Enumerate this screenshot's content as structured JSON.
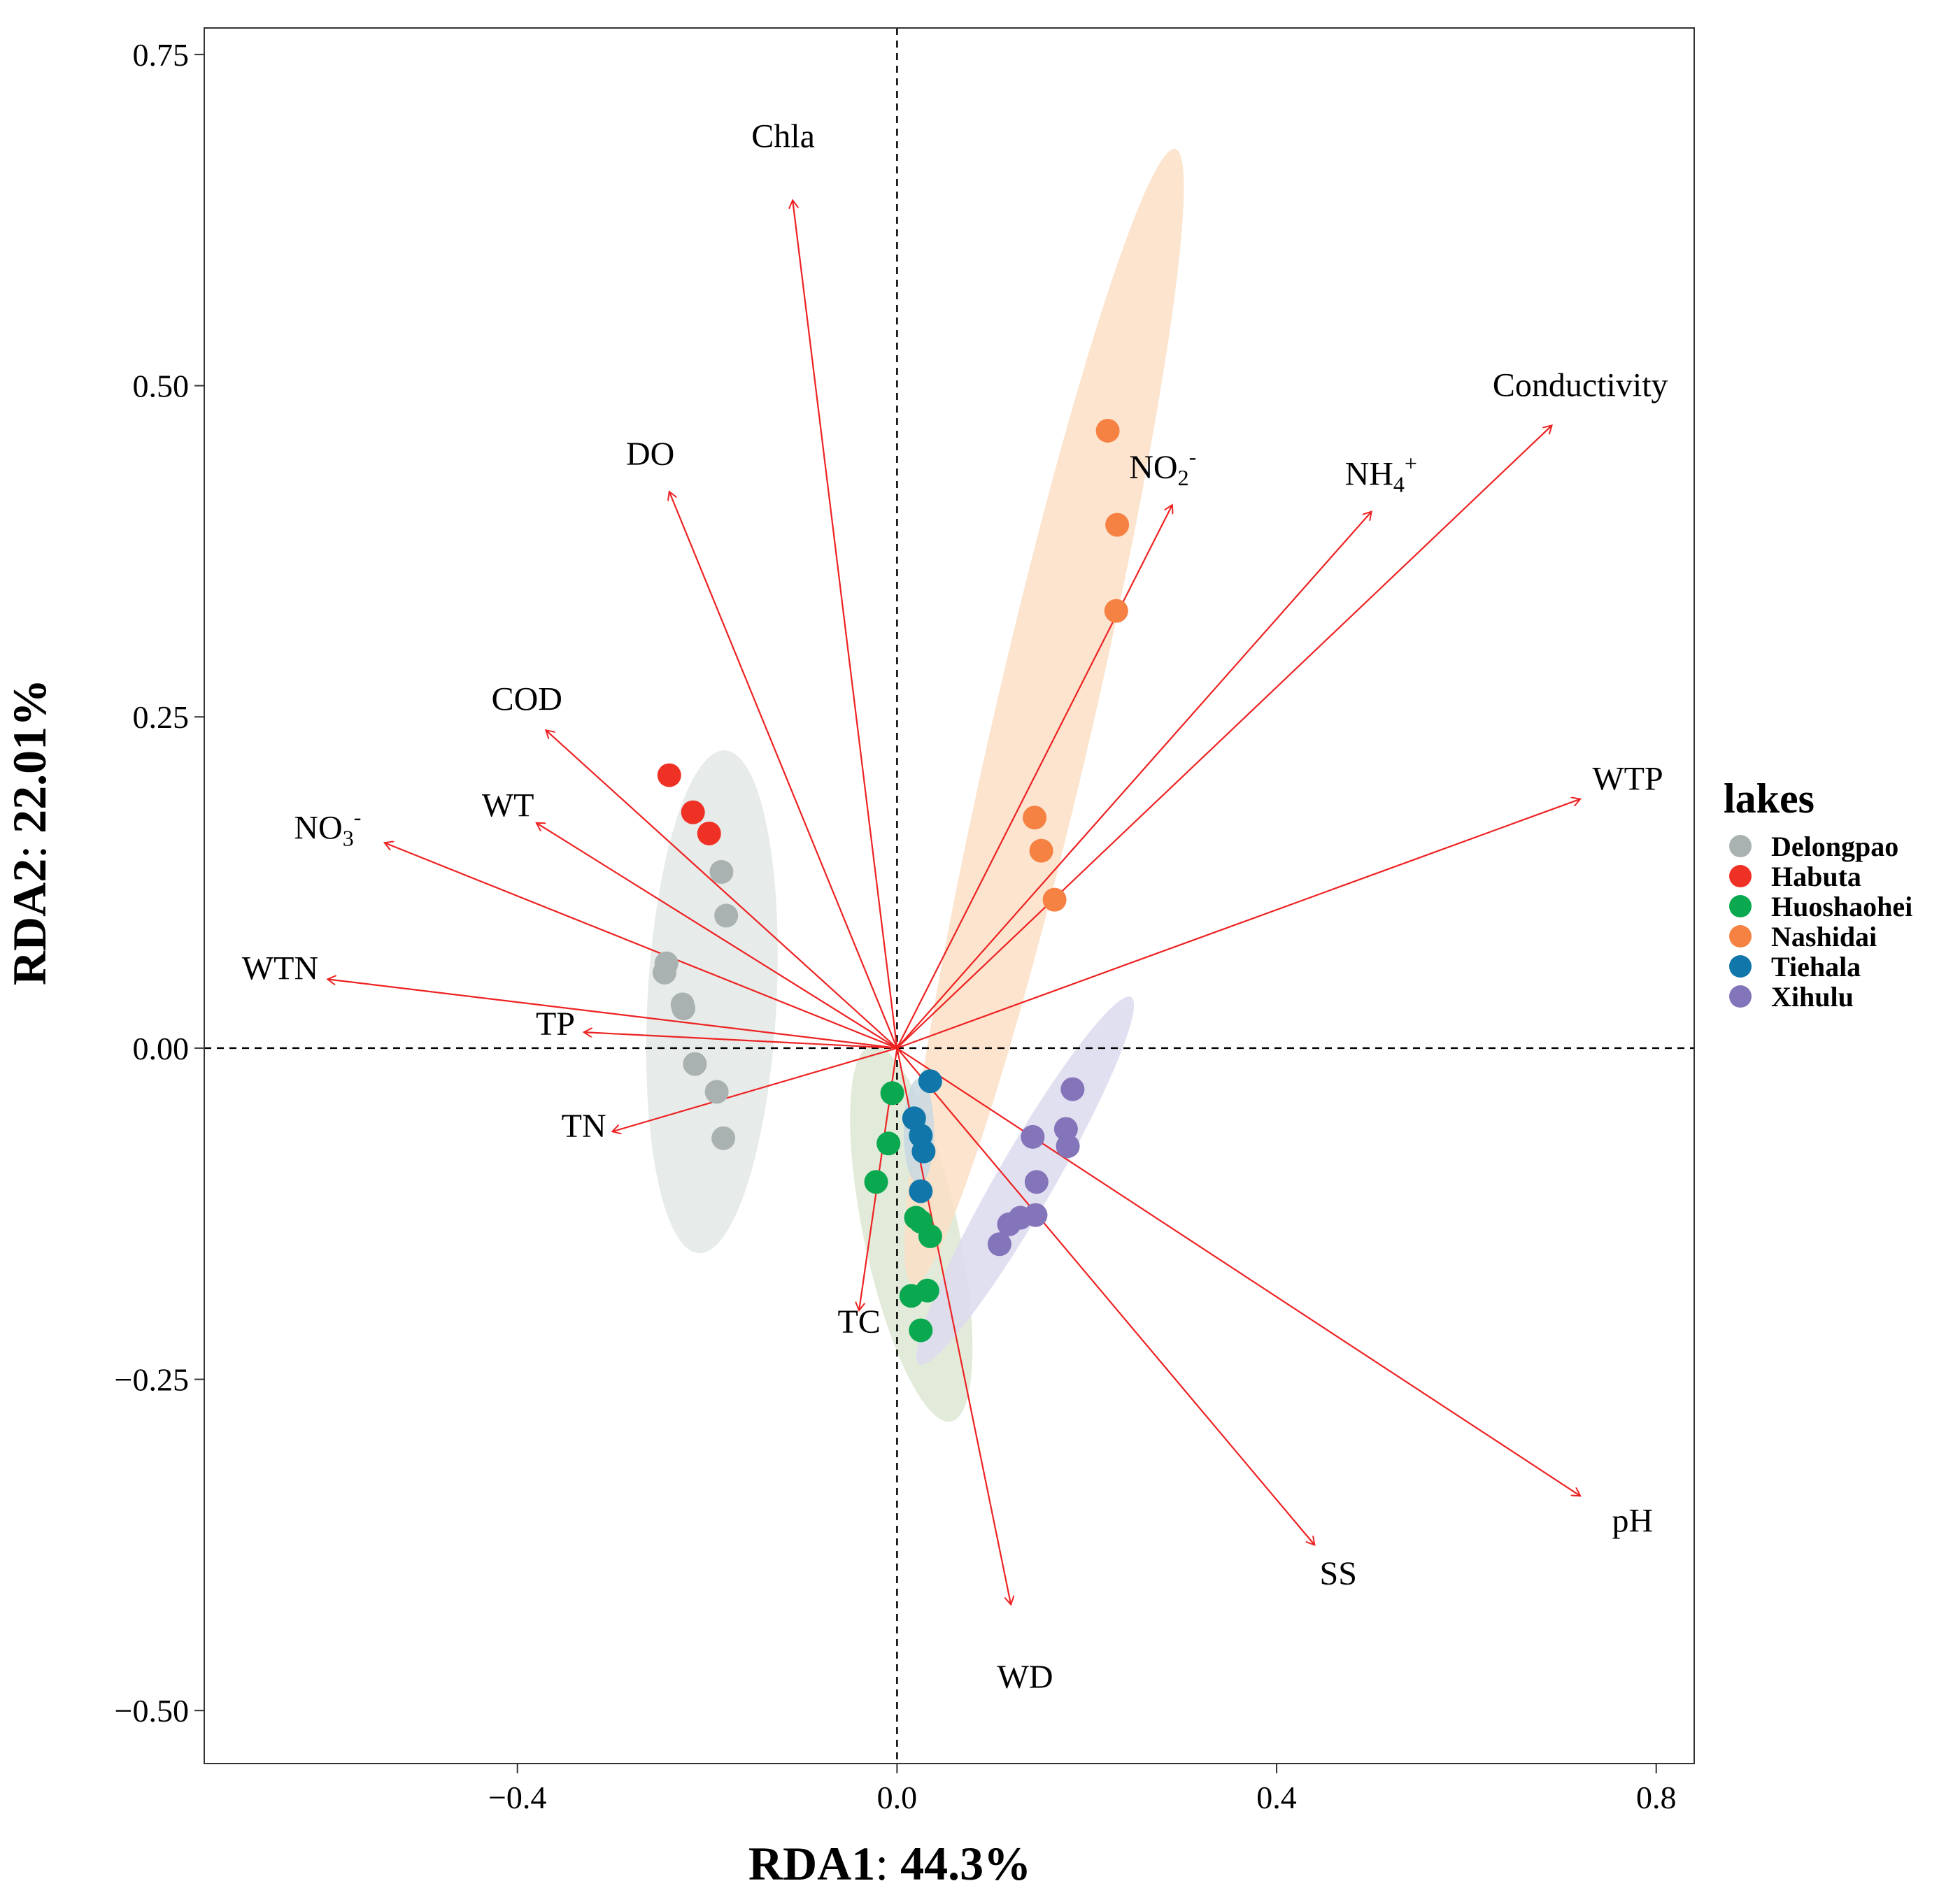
{
  "chart_data": {
    "type": "scatter",
    "subtype": "RDA biplot",
    "xlabel": {
      "name": "RDA1",
      "value": "44.3%"
    },
    "ylabel": {
      "name": "RDA2",
      "value": "22.01%"
    },
    "xlim": [
      -0.73,
      0.84
    ],
    "ylim": [
      -0.54,
      0.77
    ],
    "xticks": [
      {
        "value": -0.4,
        "label": "−0.4"
      },
      {
        "value": 0.0,
        "label": "0.0"
      },
      {
        "value": 0.4,
        "label": "0.4"
      },
      {
        "value": 0.8,
        "label": "0.8"
      }
    ],
    "yticks": [
      {
        "value": 0.75,
        "label": "0.75"
      },
      {
        "value": 0.5,
        "label": "0.50"
      },
      {
        "value": 0.25,
        "label": "0.25"
      },
      {
        "value": 0.0,
        "label": "0.00"
      },
      {
        "value": -0.25,
        "label": "−0.25"
      },
      {
        "value": -0.5,
        "label": "−0.50"
      }
    ],
    "arrow_color": "#ee2222",
    "vectors": [
      {
        "name": "Chla",
        "base": "Chla",
        "x": -0.11,
        "y": 0.64,
        "label_x": -0.12,
        "label_y": 0.68
      },
      {
        "name": "DO",
        "base": "DO",
        "x": -0.24,
        "y": 0.42,
        "label_x": -0.26,
        "label_y": 0.44
      },
      {
        "name": "COD",
        "base": "COD",
        "x": -0.37,
        "y": 0.24,
        "label_x": -0.39,
        "label_y": 0.255
      },
      {
        "name": "WT",
        "base": "WT",
        "x": -0.38,
        "y": 0.17,
        "label_x": -0.41,
        "label_y": 0.175
      },
      {
        "name": "NO3-",
        "base": "NO",
        "sub": "3",
        "sup": "-",
        "x": -0.54,
        "y": 0.155,
        "label_x": -0.6,
        "label_y": 0.158
      },
      {
        "name": "WTN",
        "base": "WTN",
        "x": -0.6,
        "y": 0.052,
        "label_x": -0.65,
        "label_y": 0.052
      },
      {
        "name": "TP",
        "base": "TP",
        "x": -0.33,
        "y": 0.012,
        "label_x": -0.36,
        "label_y": 0.01
      },
      {
        "name": "TN",
        "base": "TN",
        "x": -0.3,
        "y": -0.063,
        "label_x": -0.33,
        "label_y": -0.067
      },
      {
        "name": "TC",
        "base": "TC",
        "x": -0.04,
        "y": -0.198,
        "label_x": -0.04,
        "label_y": -0.215
      },
      {
        "name": "WD",
        "base": "WD",
        "x": 0.12,
        "y": -0.42,
        "label_x": 0.135,
        "label_y": -0.483
      },
      {
        "name": "SS",
        "base": "SS",
        "x": 0.44,
        "y": -0.375,
        "label_x": 0.465,
        "label_y": -0.405
      },
      {
        "name": "pH",
        "base": "pH",
        "x": 0.72,
        "y": -0.338,
        "label_x": 0.775,
        "label_y": -0.365
      },
      {
        "name": "WTP",
        "base": "WTP",
        "x": 0.72,
        "y": 0.188,
        "label_x": 0.77,
        "label_y": 0.195
      },
      {
        "name": "Conductivity",
        "base": "Conductivity",
        "x": 0.69,
        "y": 0.47,
        "label_x": 0.72,
        "label_y": 0.492
      },
      {
        "name": "NH4+",
        "base": "NH",
        "sub": "4",
        "sup": "+",
        "x": 0.5,
        "y": 0.405,
        "label_x": 0.51,
        "label_y": 0.425
      },
      {
        "name": "NO2-",
        "base": "NO",
        "sub": "2",
        "sup": "-",
        "x": 0.29,
        "y": 0.41,
        "label_x": 0.28,
        "label_y": 0.43
      }
    ],
    "legend": {
      "title": "lakes",
      "position": "right",
      "entries": [
        {
          "name": "Delongpao",
          "color": "#aab2b1"
        },
        {
          "name": "Habuta",
          "color": "#ee3124"
        },
        {
          "name": "Huoshaohei",
          "color": "#0aa84f"
        },
        {
          "name": "Nashidai",
          "color": "#f58142"
        },
        {
          "name": "Tiehala",
          "color": "#1177aa"
        },
        {
          "name": "Xihulu",
          "color": "#8474b9"
        }
      ]
    },
    "series": [
      {
        "name": "Delongpao",
        "color": "#aab2b1",
        "ellipse": {
          "cx": -0.195,
          "cy": 0.035,
          "rx": 0.068,
          "ry": 0.19,
          "angle": 3,
          "color": "#e3e7e5"
        },
        "points": [
          [
            -0.185,
            0.133
          ],
          [
            -0.18,
            0.1
          ],
          [
            -0.243,
            0.064
          ],
          [
            -0.245,
            0.057
          ],
          [
            -0.226,
            0.033
          ],
          [
            -0.225,
            0.03
          ],
          [
            -0.213,
            -0.012
          ],
          [
            -0.19,
            -0.033
          ],
          [
            -0.183,
            -0.068
          ]
        ]
      },
      {
        "name": "Habuta",
        "color": "#ee3124",
        "points": [
          [
            -0.24,
            0.206
          ],
          [
            -0.215,
            0.178
          ],
          [
            -0.198,
            0.162
          ]
        ]
      },
      {
        "name": "Huoshaohei",
        "color": "#0aa84f",
        "ellipse": {
          "cx": 0.015,
          "cy": -0.14,
          "rx": 0.05,
          "ry": 0.145,
          "angle": -12,
          "color": "#dde8d3"
        },
        "points": [
          [
            -0.005,
            -0.034
          ],
          [
            -0.009,
            -0.072
          ],
          [
            -0.022,
            -0.101
          ],
          [
            0.02,
            -0.128
          ],
          [
            0.025,
            -0.131
          ],
          [
            0.035,
            -0.142
          ],
          [
            0.032,
            -0.183
          ],
          [
            0.015,
            -0.187
          ],
          [
            0.025,
            -0.213
          ]
        ]
      },
      {
        "name": "Nashidai",
        "color": "#f58142",
        "ellipse": {
          "cx": 0.155,
          "cy": 0.25,
          "rx": 0.052,
          "ry": 0.44,
          "angle": 13,
          "color": "#fcdfc6"
        },
        "points": [
          [
            0.222,
            0.466
          ],
          [
            0.232,
            0.395
          ],
          [
            0.231,
            0.33
          ],
          [
            0.145,
            0.174
          ],
          [
            0.152,
            0.149
          ],
          [
            0.166,
            0.112
          ]
        ]
      },
      {
        "name": "Tiehala",
        "color": "#1177aa",
        "ellipse": {
          "cx": 0.023,
          "cy": -0.063,
          "rx": 0.016,
          "ry": 0.04,
          "angle": 0,
          "color": "#c8d8e2"
        },
        "points": [
          [
            0.035,
            -0.025
          ],
          [
            0.018,
            -0.053
          ],
          [
            0.025,
            -0.066
          ],
          [
            0.028,
            -0.078
          ],
          [
            0.025,
            -0.108
          ]
        ]
      },
      {
        "name": "Xihulu",
        "color": "#8474b9",
        "ellipse": {
          "cx": 0.135,
          "cy": -0.1,
          "rx": 0.03,
          "ry": 0.16,
          "angle": 30,
          "color": "#dcdaee"
        },
        "points": [
          [
            0.185,
            -0.031
          ],
          [
            0.178,
            -0.061
          ],
          [
            0.18,
            -0.074
          ],
          [
            0.143,
            -0.067
          ],
          [
            0.147,
            -0.101
          ],
          [
            0.146,
            -0.126
          ],
          [
            0.13,
            -0.128
          ],
          [
            0.118,
            -0.133
          ],
          [
            0.108,
            -0.148
          ]
        ]
      }
    ]
  }
}
